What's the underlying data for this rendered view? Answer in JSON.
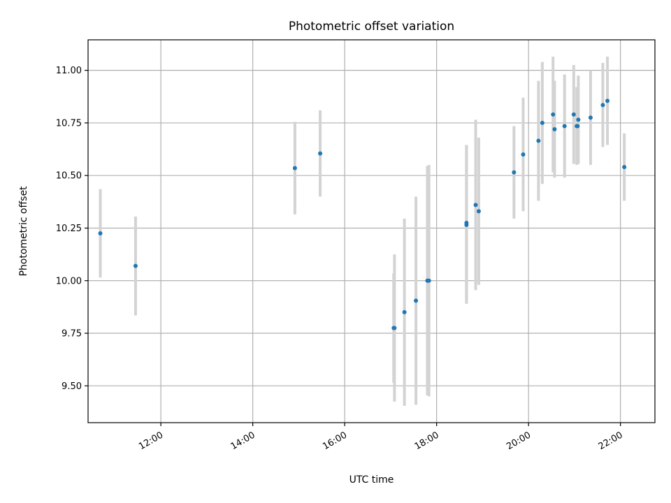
{
  "chart_data": {
    "type": "scatter",
    "title": "Photometric offset variation",
    "xlabel": "UTC time",
    "ylabel": "Photometric offset",
    "x_unit": "UTC hh:mm",
    "xlim": [
      "10:25",
      "22:45"
    ],
    "ylim": [
      9.325,
      11.145
    ],
    "x_ticks": [
      "12:00",
      "14:00",
      "16:00",
      "18:00",
      "20:00",
      "22:00"
    ],
    "y_ticks": [
      9.5,
      9.75,
      10.0,
      10.25,
      10.5,
      10.75,
      11.0
    ],
    "y_tick_labels": [
      "9.50",
      "9.75",
      "10.00",
      "10.25",
      "10.50",
      "10.75",
      "11.00"
    ],
    "grid": true,
    "x_tick_rotation": "30deg",
    "colors": {
      "point": "#1f77b4",
      "errorbar": "#d3d3d3",
      "grid": "#b0b0b0"
    },
    "series": [
      {
        "points": [
          {
            "x": "10:41",
            "y": 10.225,
            "err": 0.21
          },
          {
            "x": "11:27",
            "y": 10.07,
            "err": 0.235
          },
          {
            "x": "14:55",
            "y": 10.535,
            "err": 0.22
          },
          {
            "x": "15:28",
            "y": 10.605,
            "err": 0.205
          },
          {
            "x": "17:04",
            "y": 9.775,
            "err": 0.26
          },
          {
            "x": "17:05",
            "y": 9.775,
            "err": 0.35
          },
          {
            "x": "17:18",
            "y": 9.85,
            "err": 0.445
          },
          {
            "x": "17:33",
            "y": 9.905,
            "err": 0.495
          },
          {
            "x": "17:48",
            "y": 10.0,
            "err": 0.545
          },
          {
            "x": "17:50",
            "y": 10.0,
            "err": 0.55
          },
          {
            "x": "18:39",
            "y": 10.265,
            "err": 0.375
          },
          {
            "x": "18:39",
            "y": 10.275,
            "err": 0.37
          },
          {
            "x": "18:51",
            "y": 10.36,
            "err": 0.405
          },
          {
            "x": "18:55",
            "y": 10.33,
            "err": 0.35
          },
          {
            "x": "19:41",
            "y": 10.515,
            "err": 0.22
          },
          {
            "x": "19:53",
            "y": 10.6,
            "err": 0.27
          },
          {
            "x": "20:13",
            "y": 10.665,
            "err": 0.285
          },
          {
            "x": "20:18",
            "y": 10.75,
            "err": 0.29
          },
          {
            "x": "20:32",
            "y": 10.79,
            "err": 0.275
          },
          {
            "x": "20:34",
            "y": 10.72,
            "err": 0.23
          },
          {
            "x": "20:47",
            "y": 10.735,
            "err": 0.245
          },
          {
            "x": "20:59",
            "y": 10.79,
            "err": 0.235
          },
          {
            "x": "21:03",
            "y": 10.735,
            "err": 0.185
          },
          {
            "x": "21:04",
            "y": 10.735,
            "err": 0.175
          },
          {
            "x": "21:05",
            "y": 10.765,
            "err": 0.21
          },
          {
            "x": "21:21",
            "y": 10.775,
            "err": 0.225
          },
          {
            "x": "21:37",
            "y": 10.835,
            "err": 0.2
          },
          {
            "x": "21:43",
            "y": 10.855,
            "err": 0.21
          },
          {
            "x": "22:05",
            "y": 10.54,
            "err": 0.16
          }
        ]
      }
    ]
  }
}
